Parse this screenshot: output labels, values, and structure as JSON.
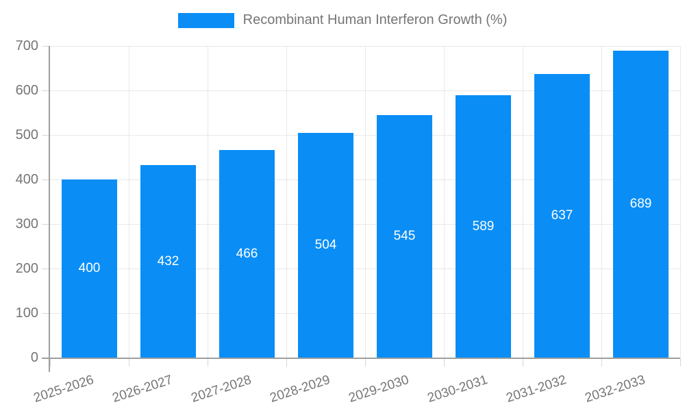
{
  "legend": {
    "label": "Recombinant Human Interferon Growth (%)"
  },
  "chart_data": {
    "type": "bar",
    "title": "Recombinant Human Interferon Growth (%)",
    "categories": [
      "2025-2026",
      "2026-2027",
      "2027-2028",
      "2028-2029",
      "2029-2030",
      "2030-2031",
      "2031-2032",
      "2032-2033"
    ],
    "series": [
      {
        "name": "Recombinant Human Interferon Growth (%)",
        "values": [
          400,
          432,
          466,
          504,
          545,
          589,
          637,
          689
        ]
      }
    ],
    "values": [
      400,
      432,
      466,
      504,
      545,
      589,
      637,
      689
    ],
    "bar_labels_visible": true,
    "xlabel": "",
    "ylabel": "",
    "ylim": [
      0,
      700
    ],
    "ytick_step": 100,
    "yticks": [
      0,
      100,
      200,
      300,
      400,
      500,
      600,
      700
    ],
    "grid": true,
    "legend_position": "top-center",
    "x_tick_rotation_deg": -18,
    "colors": {
      "bar": "#0A8EF6",
      "bar_label": "#ffffff",
      "axis_text": "#757575",
      "axis_line": "#9e9e9e",
      "gridline": "#e8e8e8",
      "tick": "#d6d6d6",
      "background": "#ffffff"
    }
  }
}
